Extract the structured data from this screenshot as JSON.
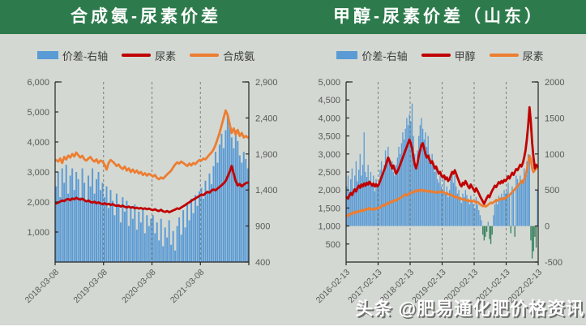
{
  "palette": {
    "page_bg": "#d3d8d2",
    "header_bg": "#2d7b4c",
    "title_color": "#ffffff",
    "axis_text": "#595959",
    "axis_line": "#262626",
    "gridline": "#7b7f7b",
    "footer_strip": "#ffffff"
  },
  "watermark": {
    "text": "头条 @肥易通化肥价格资讯"
  },
  "chart_data": [
    {
      "type": "combo-bar-line",
      "title": "合成氨-尿素价差",
      "legend": [
        "价差-右轴",
        "尿素",
        "合成氨"
      ],
      "legend_position": "top",
      "x_axis": {
        "tick_labels": [
          "2018-03-08",
          "2019-03-08",
          "2020-03-08",
          "2021-03-08"
        ],
        "intervals": 4,
        "dashed_tick_indexes": [
          1,
          2,
          3
        ]
      },
      "axes": {
        "left": {
          "min": 0,
          "max": 6000,
          "tick_values": [
            6000,
            5000,
            4000,
            3000,
            2000,
            1000
          ],
          "tick_labels": [
            "6,000",
            "5,000",
            "4,000",
            "3,000",
            "2,000",
            "1,000"
          ]
        },
        "right": {
          "min": 400,
          "max": 2900,
          "tick_values": [
            2900,
            2400,
            1900,
            1400,
            900,
            400
          ],
          "tick_labels": [
            "2,900",
            "2,400",
            "1,900",
            "1,400",
            "900",
            "400"
          ]
        }
      },
      "series": [
        {
          "name": "价差-右轴",
          "axis": "right",
          "style": "bar",
          "color": "#5b9bd5",
          "neg_color": "#35805c",
          "baseline": 400,
          "values": [
            1450,
            1650,
            1300,
            1700,
            1500,
            1750,
            1350,
            1600,
            1700,
            1400,
            1650,
            1550,
            1300,
            1700,
            1500,
            1250,
            1600,
            1450,
            1700,
            1350,
            1550,
            1650,
            1400,
            1500,
            1300,
            1450,
            1150,
            1400,
            1250,
            1050,
            1350,
            1200,
            950,
            1300,
            1100,
            1250,
            900,
            1150,
            1000,
            1200,
            850,
            1100,
            950,
            1150,
            800,
            1050,
            900,
            1000,
            1050,
            800,
            950,
            700,
            1000,
            620,
            880,
            740,
            980,
            640,
            830,
            560,
            900,
            1020,
            780,
            1120,
            880,
            1220,
            980,
            1280,
            1080,
            1330,
            1180,
            1380,
            1430,
            1280,
            1530,
            1380,
            1630,
            1480,
            1730,
            1930,
            1780,
            2030,
            2180,
            1980,
            2230,
            2430,
            2280,
            2130,
            1980,
            2230,
            2080,
            1880,
            1780,
            1930,
            1830,
            1700
          ]
        },
        {
          "name": "尿素",
          "axis": "left",
          "style": "line",
          "color": "#c00000",
          "values": [
            1950,
            1980,
            2010,
            2050,
            2030,
            2080,
            2100,
            2060,
            2120,
            2090,
            2140,
            2100,
            2080,
            2110,
            2060,
            2020,
            2050,
            2000,
            1980,
            2010,
            1960,
            1990,
            1950,
            1930,
            1960,
            1920,
            1940,
            1900,
            1930,
            1890,
            1870,
            1890,
            1850,
            1880,
            1840,
            1820,
            1850,
            1810,
            1830,
            1790,
            1810,
            1780,
            1800,
            1770,
            1790,
            1760,
            1780,
            1750,
            1730,
            1760,
            1720,
            1700,
            1740,
            1690,
            1670,
            1700,
            1660,
            1690,
            1720,
            1750,
            1790,
            1770,
            1820,
            1860,
            1900,
            1950,
            1990,
            2040,
            2080,
            2120,
            2160,
            2200,
            2250,
            2230,
            2290,
            2340,
            2310,
            2380,
            2420,
            2390,
            2450,
            2500,
            2560,
            2620,
            2700,
            2850,
            3000,
            3200,
            2950,
            2700,
            2550,
            2600,
            2520,
            2580,
            2630,
            2650
          ]
        },
        {
          "name": "合成氨",
          "axis": "left",
          "style": "line",
          "color": "#ed7d31",
          "values": [
            3400,
            3350,
            3450,
            3300,
            3500,
            3420,
            3550,
            3480,
            3600,
            3520,
            3650,
            3560,
            3480,
            3540,
            3420,
            3380,
            3450,
            3500,
            3400,
            3350,
            3420,
            3300,
            3380,
            3350,
            3250,
            3080,
            3300,
            3400,
            3350,
            3280,
            3200,
            3250,
            3150,
            3100,
            3180,
            3050,
            3120,
            3000,
            3080,
            2980,
            3050,
            2950,
            3000,
            2900,
            2960,
            2880,
            2940,
            2900,
            2850,
            2900,
            2800,
            2760,
            2820,
            2780,
            2850,
            2920,
            2980,
            3050,
            3150,
            3250,
            3320,
            3280,
            3350,
            3300,
            3250,
            3200,
            3280,
            3220,
            3300,
            3260,
            3340,
            3400,
            3380,
            3450,
            3420,
            3500,
            3580,
            3650,
            3750,
            3900,
            4100,
            4300,
            4550,
            4800,
            5050,
            4900,
            4600,
            4300,
            4450,
            4250,
            4400,
            4200,
            4300,
            4150,
            4200,
            4150
          ]
        }
      ]
    },
    {
      "type": "combo-bar-line",
      "title": "甲醇-尿素价差（山东）",
      "legend": [
        "价差-右轴",
        "甲醇",
        "尿素"
      ],
      "legend_position": "top",
      "x_axis": {
        "tick_labels": [
          "2016-02-13",
          "2017-02-13",
          "2018-02-13",
          "2019-02-13",
          "2020-02-13",
          "2021-02-13",
          "2022-02-13"
        ],
        "intervals": 6,
        "dashed_tick_indexes": [
          1,
          2,
          3,
          4,
          5,
          6
        ]
      },
      "axes": {
        "left": {
          "min": 0,
          "max": 5000,
          "tick_values": [
            5000,
            4500,
            4000,
            3500,
            3000,
            2500,
            2000,
            1500,
            1000,
            500
          ],
          "tick_labels": [
            "5,000",
            "4,500",
            "4,000",
            "3,500",
            "3,000",
            "2,500",
            "2,000",
            "1,500",
            "1,000",
            "500"
          ]
        },
        "right": {
          "min": -500,
          "max": 2000,
          "tick_values": [
            2000,
            1500,
            1000,
            500,
            0,
            -500
          ],
          "tick_labels": [
            "2000",
            "1500",
            "1000",
            "500",
            "0",
            "-500"
          ]
        }
      },
      "series": [
        {
          "name": "价差-右轴",
          "axis": "right",
          "style": "bar",
          "color": "#5b9bd5",
          "neg_color": "#35805c",
          "baseline": 0,
          "values": [
            550,
            700,
            480,
            650,
            800,
            520,
            700,
            900,
            620,
            780,
            1000,
            700,
            850,
            1300,
            750,
            680,
            850,
            600,
            750,
            550,
            700,
            480,
            650,
            580,
            600,
            780,
            900,
            700,
            850,
            1050,
            900,
            1100,
            950,
            800,
            900,
            750,
            700,
            850,
            950,
            1100,
            1000,
            1150,
            1300,
            1200,
            1350,
            1500,
            1400,
            1550,
            1450,
            1700,
            1250,
            1000,
            850,
            1050,
            1250,
            1400,
            1500,
            1350,
            1200,
            1300,
            1100,
            1250,
            1000,
            900,
            1000,
            850,
            750,
            800,
            650,
            600,
            700,
            550,
            500,
            650,
            450,
            550,
            400,
            500,
            650,
            750,
            600,
            700,
            550,
            450,
            500,
            380,
            320,
            450,
            400,
            500,
            430,
            350,
            300,
            420,
            350,
            300,
            250,
            400,
            300,
            220,
            150,
            80,
            -120,
            -200,
            -150,
            -80,
            60,
            -180,
            -250,
            -120,
            150,
            300,
            380,
            300,
            420,
            380,
            450,
            400,
            500,
            450,
            480,
            600,
            420,
            -100,
            550,
            500,
            -150,
            700,
            650,
            550,
            700,
            600,
            650,
            800,
            700,
            900,
            1000,
            950,
            -200,
            -450,
            -350,
            -150,
            -300,
            500
          ]
        },
        {
          "name": "甲醇",
          "axis": "left",
          "style": "line",
          "color": "#c00000",
          "values": [
            1800,
            1760,
            1850,
            1920,
            1860,
            1950,
            2020,
            1960,
            2050,
            2120,
            2060,
            2150,
            2100,
            2180,
            2120,
            2200,
            2150,
            2230,
            2180,
            2120,
            2180,
            2100,
            2160,
            2100,
            2150,
            2250,
            2350,
            2450,
            2550,
            2650,
            2780,
            2900,
            2820,
            2700,
            2600,
            2680,
            2550,
            2450,
            2520,
            2600,
            2700,
            2800,
            2900,
            3000,
            3100,
            3200,
            3300,
            3400,
            3300,
            3150,
            2900,
            2700,
            2600,
            2750,
            2950,
            3100,
            3250,
            3300,
            3150,
            3000,
            2900,
            2950,
            2850,
            2750,
            2800,
            2700,
            2600,
            2650,
            2550,
            2450,
            2500,
            2400,
            2350,
            2400,
            2300,
            2350,
            2250,
            2300,
            2400,
            2500,
            2450,
            2550,
            2450,
            2350,
            2250,
            2150,
            2100,
            2200,
            2150,
            2250,
            2180,
            2100,
            2050,
            2150,
            2080,
            2020,
            1950,
            2050,
            1980,
            1900,
            1820,
            1750,
            1680,
            1620,
            1700,
            1780,
            1850,
            1800,
            1900,
            1980,
            2050,
            2120,
            2080,
            2150,
            2220,
            2180,
            2250,
            2200,
            2280,
            2250,
            2300,
            2380,
            2320,
            2400,
            2480,
            2420,
            2500,
            2580,
            2550,
            2620,
            2700,
            2650,
            2750,
            2900,
            3100,
            3400,
            3800,
            4300,
            3900,
            3300,
            2900,
            2600,
            2700,
            2650
          ]
        },
        {
          "name": "尿素",
          "axis": "left",
          "style": "line",
          "color": "#ed7d31",
          "values": [
            1300,
            1280,
            1320,
            1350,
            1330,
            1380,
            1360,
            1400,
            1380,
            1420,
            1400,
            1440,
            1420,
            1460,
            1440,
            1480,
            1460,
            1500,
            1480,
            1450,
            1480,
            1460,
            1500,
            1480,
            1500,
            1520,
            1550,
            1580,
            1560,
            1600,
            1630,
            1610,
            1650,
            1680,
            1660,
            1700,
            1720,
            1700,
            1740,
            1760,
            1780,
            1800,
            1830,
            1860,
            1880,
            1850,
            1880,
            1900,
            1920,
            1950,
            1930,
            1960,
            1990,
            1960,
            2000,
            1980,
            2010,
            1990,
            1960,
            1990,
            1970,
            1950,
            1980,
            1960,
            1940,
            1960,
            1940,
            1920,
            1950,
            1930,
            1960,
            1940,
            1950,
            1930,
            1900,
            1920,
            1880,
            1860,
            1880,
            1850,
            1830,
            1800,
            1820,
            1790,
            1760,
            1780,
            1750,
            1730,
            1750,
            1720,
            1700,
            1720,
            1690,
            1710,
            1680,
            1700,
            1680,
            1650,
            1670,
            1640,
            1600,
            1580,
            1550,
            1570,
            1540,
            1560,
            1590,
            1620,
            1650,
            1630,
            1660,
            1690,
            1720,
            1700,
            1730,
            1760,
            1740,
            1770,
            1750,
            1780,
            1800,
            1830,
            1860,
            1900,
            1940,
            1980,
            2020,
            2060,
            2100,
            2150,
            2200,
            2250,
            2200,
            2300,
            2400,
            2550,
            2750,
            2950,
            2850,
            2600,
            2500,
            2550,
            2600,
            2620
          ]
        }
      ]
    }
  ]
}
